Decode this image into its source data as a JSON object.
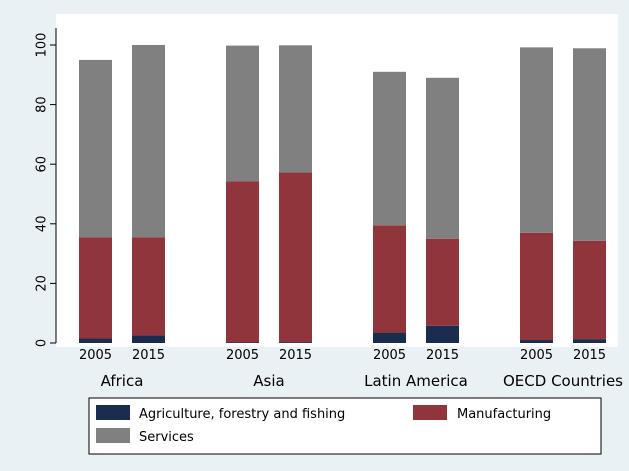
{
  "chart_data": {
    "type": "bar",
    "stacked": true,
    "groups": [
      {
        "label": "Africa",
        "bars": [
          {
            "label": "2005",
            "values": [
              1.5,
              34.0,
              59.5
            ]
          },
          {
            "label": "2015",
            "values": [
              2.5,
              33.0,
              64.5
            ]
          }
        ]
      },
      {
        "label": "Asia",
        "bars": [
          {
            "label": "2005",
            "values": [
              0.3,
              54.0,
              45.5
            ]
          },
          {
            "label": "2015",
            "values": [
              0.3,
              57.0,
              42.6
            ]
          }
        ]
      },
      {
        "label": "Latin America",
        "bars": [
          {
            "label": "2005",
            "values": [
              3.5,
              36.0,
              51.5
            ]
          },
          {
            "label": "2015",
            "values": [
              5.8,
              29.2,
              54.0
            ]
          }
        ]
      },
      {
        "label": "OECD Countries",
        "bars": [
          {
            "label": "2005",
            "values": [
              1.0,
              36.0,
              62.2
            ]
          },
          {
            "label": "2015",
            "values": [
              1.3,
              33.0,
              64.6
            ]
          }
        ]
      }
    ],
    "series": [
      {
        "name": "Agriculture, forestry and fishing",
        "color": "#1a2d4e"
      },
      {
        "name": "Manufacturing",
        "color": "#90353b"
      },
      {
        "name": "Services",
        "color": "#808080"
      }
    ],
    "ylim": [
      0,
      100
    ],
    "yticks": [
      0,
      20,
      40,
      60,
      80,
      100
    ],
    "grid": false,
    "legend_position": "bottom"
  }
}
